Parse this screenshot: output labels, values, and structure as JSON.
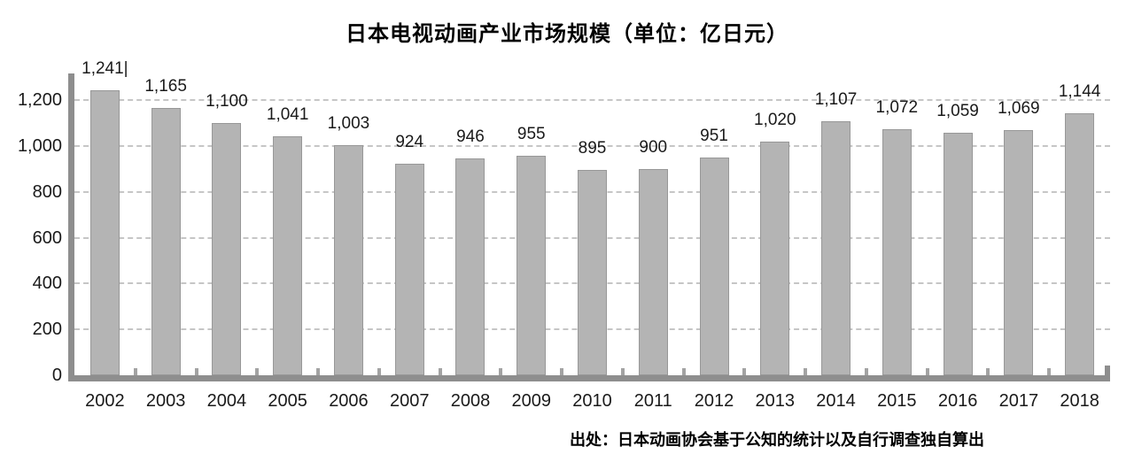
{
  "title": "日本电视动画产业市场规模（单位：亿日元）",
  "source_note": "出处：日本动画协会基于公知的统计以及自行调查独自算出",
  "chart_data": {
    "type": "bar",
    "title": "日本电视动画产业市场规模（单位：亿日元）",
    "categories": [
      "2002",
      "2003",
      "2004",
      "2005",
      "2006",
      "2007",
      "2008",
      "2009",
      "2010",
      "2011",
      "2012",
      "2013",
      "2014",
      "2015",
      "2016",
      "2017",
      "2018"
    ],
    "values": [
      1241,
      1165,
      1100,
      1041,
      1003,
      924,
      946,
      955,
      895,
      900,
      951,
      1020,
      1107,
      1072,
      1059,
      1069,
      1144
    ],
    "value_labels": [
      "1,241|",
      "1,165",
      "1,100",
      "1,041",
      "1,003",
      "924",
      "946",
      "955",
      "895",
      "900",
      "951",
      "1,020",
      "1,107",
      "1,072",
      "1,059",
      "1,069",
      "1,144"
    ],
    "xlabel": "",
    "ylabel": "",
    "ylim": [
      0,
      1300
    ],
    "yticks": [
      0,
      200,
      400,
      600,
      800,
      1000,
      1200
    ],
    "ytick_labels": [
      "0",
      "200",
      "400",
      "600",
      "800",
      "1,000",
      "1,200"
    ],
    "grid": "horizontal-dashed",
    "legend": "none",
    "source": "出处：日本动画协会基于公知的统计以及自行调查独自算出",
    "colors": {
      "bar_fill": "#b4b4b4",
      "bar_border": "#989898",
      "axis": "#8e8e8e",
      "tick": "#a3a3a3",
      "gridline": "#c6c6c6",
      "text": "#1a1a1a",
      "background": "#ffffff"
    }
  }
}
